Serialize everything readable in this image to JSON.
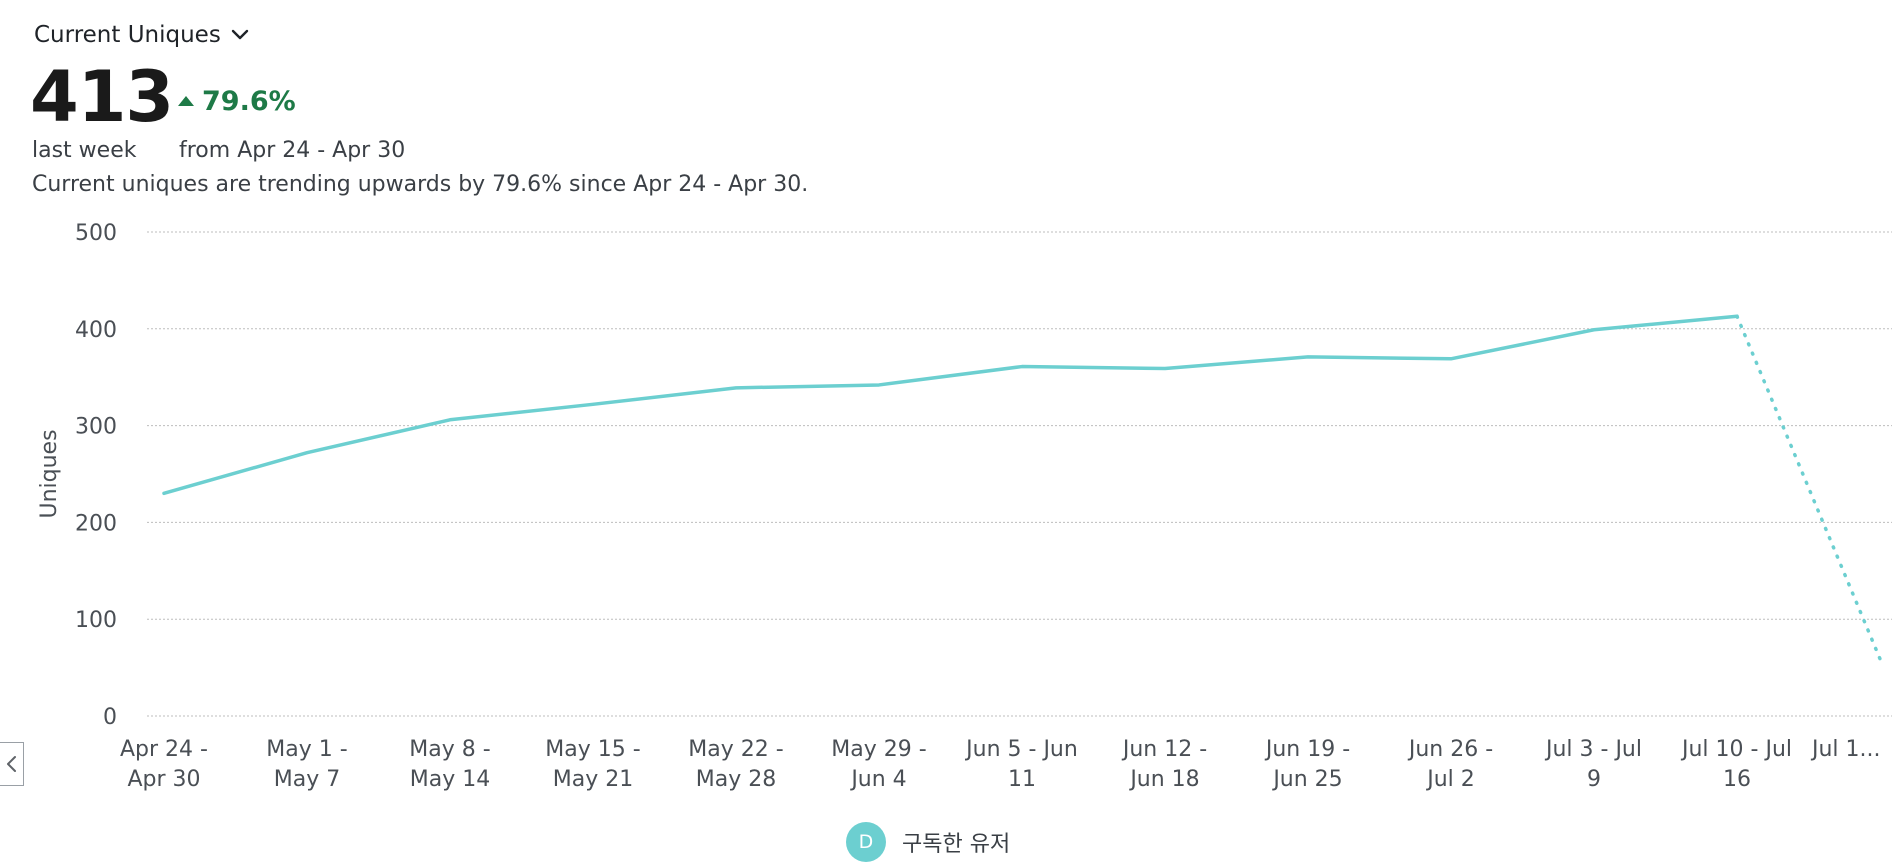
{
  "header": {
    "metric_selector_label": "Current Uniques",
    "value": "413",
    "change": "79.6%",
    "period_label": "last week",
    "compare_label": "from Apr 24 - Apr 30",
    "summary": "Current uniques are trending upwards by 79.6% since Apr 24 - Apr 30.",
    "icons": {
      "selector": "chevron-down-icon",
      "change": "triangle-up-icon",
      "scroll": "chevron-left-icon"
    }
  },
  "chart_data": {
    "type": "line",
    "ylabel": "Uniques",
    "xlabel": "",
    "ylim": [
      0,
      500
    ],
    "yticks": [
      0,
      100,
      200,
      300,
      400,
      500
    ],
    "grid": true,
    "categories": [
      [
        "Apr 24 -",
        "Apr 30"
      ],
      [
        "May 1 -",
        "May 7"
      ],
      [
        "May 8 -",
        "May 14"
      ],
      [
        "May 15 -",
        "May 21"
      ],
      [
        "May 22 -",
        "May 28"
      ],
      [
        "May 29 -",
        "Jun 4"
      ],
      [
        "Jun 5 - Jun",
        "11"
      ],
      [
        "Jun 12 -",
        "Jun 18"
      ],
      [
        "Jun 19 -",
        "Jun 25"
      ],
      [
        "Jun 26 -",
        "Jul 2"
      ],
      [
        "Jul 3 - Jul",
        "9"
      ],
      [
        "Jul 10 - Jul",
        "16"
      ],
      [
        "Jul 1..."
      ]
    ],
    "series": [
      {
        "name": "구독한 유저",
        "marker": "D",
        "color": "#6ccfd0",
        "values": [
          230,
          272,
          306,
          322,
          339,
          342,
          361,
          359,
          371,
          369,
          399,
          413,
          59
        ],
        "incomplete_from_index": 11
      }
    ]
  }
}
